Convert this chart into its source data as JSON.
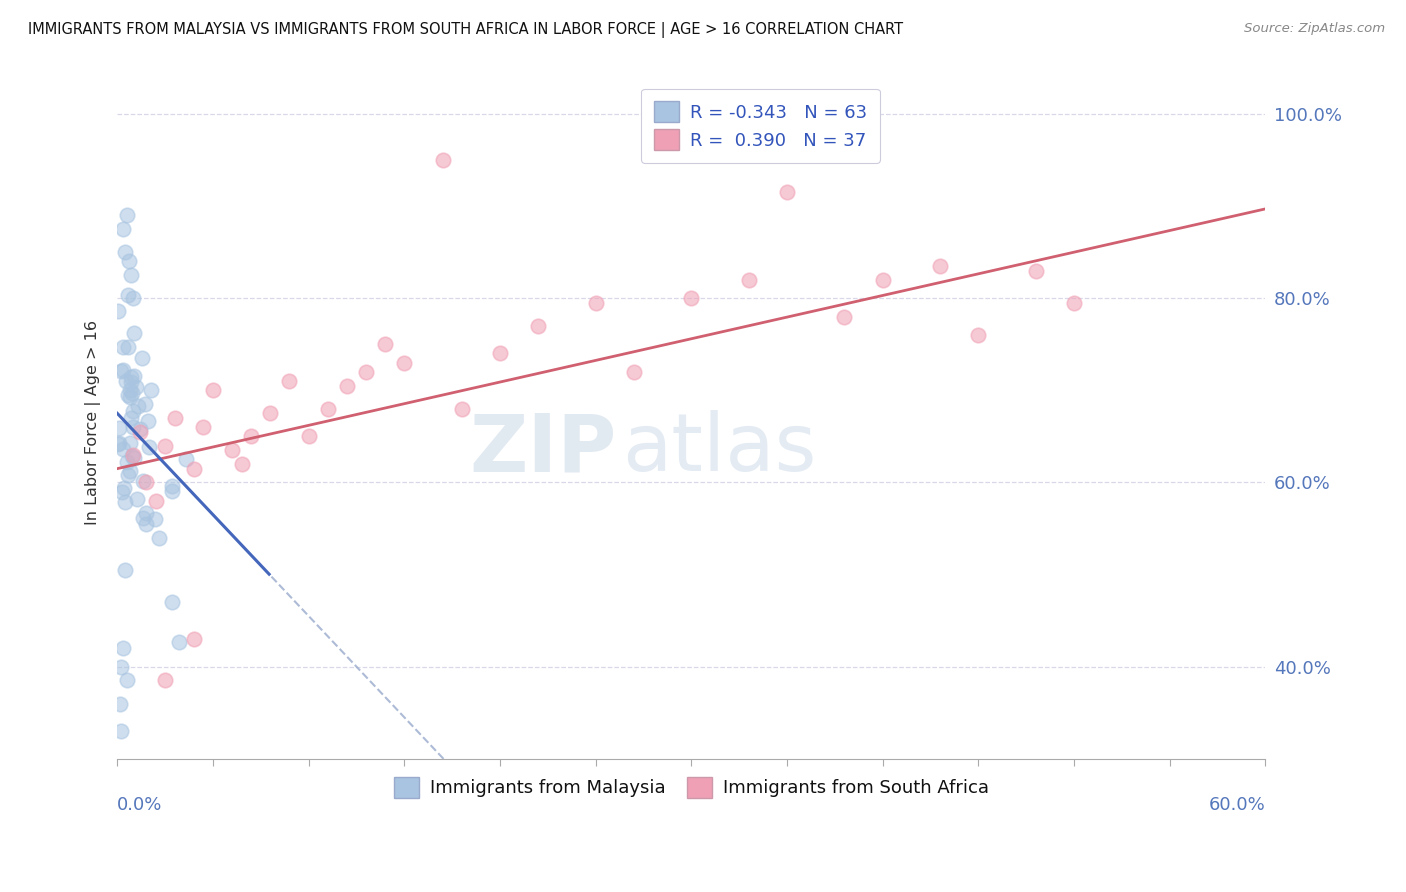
{
  "title": "IMMIGRANTS FROM MALAYSIA VS IMMIGRANTS FROM SOUTH AFRICA IN LABOR FORCE | AGE > 16 CORRELATION CHART",
  "source": "Source: ZipAtlas.com",
  "legend_malaysia": "Immigrants from Malaysia",
  "legend_south_africa": "Immigrants from South Africa",
  "R_malaysia": -0.343,
  "N_malaysia": 63,
  "R_south_africa": 0.39,
  "N_south_africa": 37,
  "color_malaysia": "#a8c4e0",
  "color_south_africa": "#f0a0b4",
  "color_malaysia_line": "#4466bb",
  "color_south_africa_line": "#d06070",
  "color_malaysia_dashed": "#99aacc",
  "ylabel": "In Labor Force | Age > 16",
  "xlim": [
    0.0,
    60.0
  ],
  "ylim": [
    30.0,
    103.0
  ],
  "yticks": [
    40.0,
    60.0,
    80.0,
    100.0
  ],
  "background_color": "#ffffff",
  "grid_color": "#d8d8e8",
  "malaysia_line_x0": 0.0,
  "malaysia_line_y0": 67.5,
  "malaysia_line_slope": -2.2,
  "malaysia_solid_xmax": 8.0,
  "malaysia_dashed_xmax": 28.0,
  "sa_line_x0": 0.0,
  "sa_line_y0": 61.5,
  "sa_line_slope": 0.47
}
